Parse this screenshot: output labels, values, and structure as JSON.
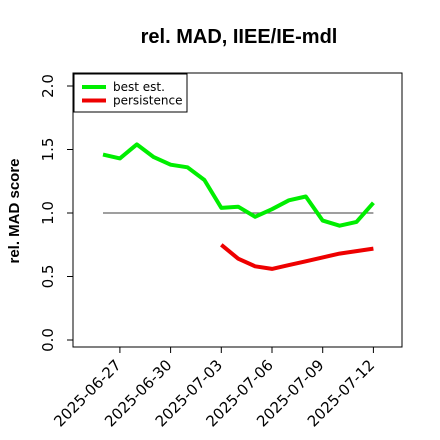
{
  "chart_data": {
    "type": "line",
    "title": "rel. MAD, IIEE/IE-mdl",
    "ylabel": "rel. MAD score",
    "xlabel": "",
    "ylim": [
      0.0,
      2.0
    ],
    "yticks": [
      "0.0",
      "0.5",
      "1.0",
      "1.5",
      "2.0"
    ],
    "xticks": [
      "2025-06-27",
      "2025-06-30",
      "2025-07-03",
      "2025-07-06",
      "2025-07-09",
      "2025-07-12"
    ],
    "x": [
      "2025-06-26",
      "2025-06-27",
      "2025-06-28",
      "2025-06-29",
      "2025-06-30",
      "2025-07-01",
      "2025-07-02",
      "2025-07-03",
      "2025-07-04",
      "2025-07-05",
      "2025-07-06",
      "2025-07-07",
      "2025-07-08",
      "2025-07-09",
      "2025-07-10",
      "2025-07-11",
      "2025-07-12"
    ],
    "reference_line": 1.0,
    "legend_position": "top-left",
    "series": [
      {
        "name": "best est.",
        "color": "#00ee00",
        "values": [
          1.46,
          1.43,
          1.54,
          1.44,
          1.38,
          1.36,
          1.26,
          1.04,
          1.05,
          0.97,
          1.03,
          1.1,
          1.13,
          0.94,
          0.9,
          0.93,
          1.08
        ]
      },
      {
        "name": "persistence",
        "color": "#ee0000",
        "values": [
          null,
          null,
          null,
          null,
          null,
          null,
          null,
          0.75,
          0.64,
          0.58,
          0.56,
          0.59,
          0.62,
          0.65,
          0.68,
          0.7,
          0.72
        ]
      }
    ]
  }
}
